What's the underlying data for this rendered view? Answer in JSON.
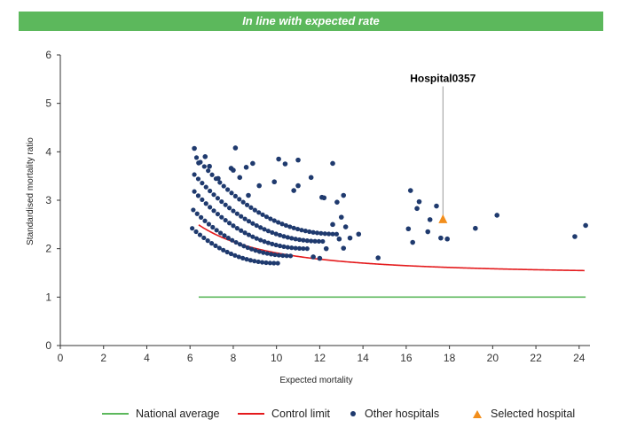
{
  "banner": {
    "text": "In line with expected rate",
    "color": "#5cb85c"
  },
  "chart_data": {
    "type": "scatter",
    "title": "",
    "xlabel": "Expected mortality",
    "ylabel": "Standardised mortality ratio",
    "xlim": [
      0,
      24.5
    ],
    "ylim": [
      0,
      6
    ],
    "xticks": [
      0,
      2,
      4,
      6,
      8,
      10,
      12,
      14,
      16,
      18,
      20,
      22,
      24
    ],
    "yticks": [
      0,
      1,
      2,
      3,
      4,
      5,
      6
    ],
    "grid": false,
    "legend_position": "bottom",
    "national_average": {
      "name": "National average",
      "color": "#5cb85c",
      "y": 1,
      "x_range": [
        6.4,
        24.3
      ]
    },
    "control_limit": {
      "name": "Control limit",
      "color": "#e41a1c",
      "x_range": [
        6.4,
        24.3
      ],
      "formula_note": "approx 1 + 2*sqrt(1/x)*... read from plot"
    },
    "selected_hospital": {
      "name": "Selected hospital",
      "label": "Hospital0357",
      "x": 17.7,
      "y": 2.6,
      "color": "#f28e1c"
    },
    "other_hospitals": {
      "name": "Other hospitals",
      "color": "#1f3a6e",
      "scatter_extra": [
        [
          6.2,
          4.07
        ],
        [
          6.4,
          3.77
        ],
        [
          6.7,
          3.9
        ],
        [
          6.9,
          3.7
        ],
        [
          7.3,
          3.45
        ],
        [
          8.1,
          4.08
        ],
        [
          8.0,
          3.62
        ],
        [
          7.9,
          3.66
        ],
        [
          8.6,
          3.68
        ],
        [
          8.9,
          3.76
        ],
        [
          8.3,
          3.47
        ],
        [
          8.7,
          3.1
        ],
        [
          9.2,
          3.3
        ],
        [
          9.9,
          3.38
        ],
        [
          10.1,
          3.85
        ],
        [
          10.4,
          3.75
        ],
        [
          11.0,
          3.83
        ],
        [
          11.0,
          3.3
        ],
        [
          10.8,
          3.2
        ],
        [
          11.6,
          3.47
        ],
        [
          12.6,
          3.76
        ],
        [
          12.1,
          3.06
        ],
        [
          12.2,
          3.05
        ],
        [
          12.8,
          2.96
        ],
        [
          13.1,
          3.1
        ],
        [
          13.0,
          2.65
        ],
        [
          12.6,
          2.5
        ],
        [
          13.2,
          2.45
        ],
        [
          13.4,
          2.22
        ],
        [
          13.8,
          2.3
        ],
        [
          12.9,
          2.2
        ],
        [
          12.3,
          2.0
        ],
        [
          11.7,
          1.83
        ],
        [
          13.1,
          2.01
        ],
        [
          14.7,
          1.81
        ],
        [
          12.0,
          1.8
        ],
        [
          16.2,
          3.2
        ],
        [
          16.5,
          2.83
        ],
        [
          16.6,
          2.97
        ],
        [
          17.0,
          2.35
        ],
        [
          17.1,
          2.6
        ],
        [
          17.4,
          2.88
        ],
        [
          16.1,
          2.41
        ],
        [
          16.3,
          2.13
        ],
        [
          17.6,
          2.22
        ],
        [
          17.9,
          2.2
        ],
        [
          19.2,
          2.42
        ],
        [
          20.2,
          2.69
        ],
        [
          23.8,
          2.25
        ],
        [
          24.3,
          2.48
        ]
      ],
      "bands": [
        {
          "start": 6.1,
          "end": 10.1,
          "base": 1.7,
          "amp": 0.72
        },
        {
          "start": 6.15,
          "end": 10.8,
          "base": 1.85,
          "amp": 0.95
        },
        {
          "start": 6.2,
          "end": 11.5,
          "base": 2.0,
          "amp": 1.18
        },
        {
          "start": 6.2,
          "end": 12.2,
          "base": 2.15,
          "amp": 1.38
        },
        {
          "start": 6.3,
          "end": 12.9,
          "base": 2.3,
          "amp": 1.58
        }
      ]
    }
  },
  "legend": {
    "items": [
      {
        "label": "National average",
        "kind": "line",
        "color": "#5cb85c"
      },
      {
        "label": "Control limit",
        "kind": "line",
        "color": "#e41a1c"
      },
      {
        "label": "Other hospitals",
        "kind": "dot",
        "color": "#1f3a6e"
      },
      {
        "label": "Selected hospital",
        "kind": "triangle",
        "color": "#f28e1c"
      }
    ]
  }
}
